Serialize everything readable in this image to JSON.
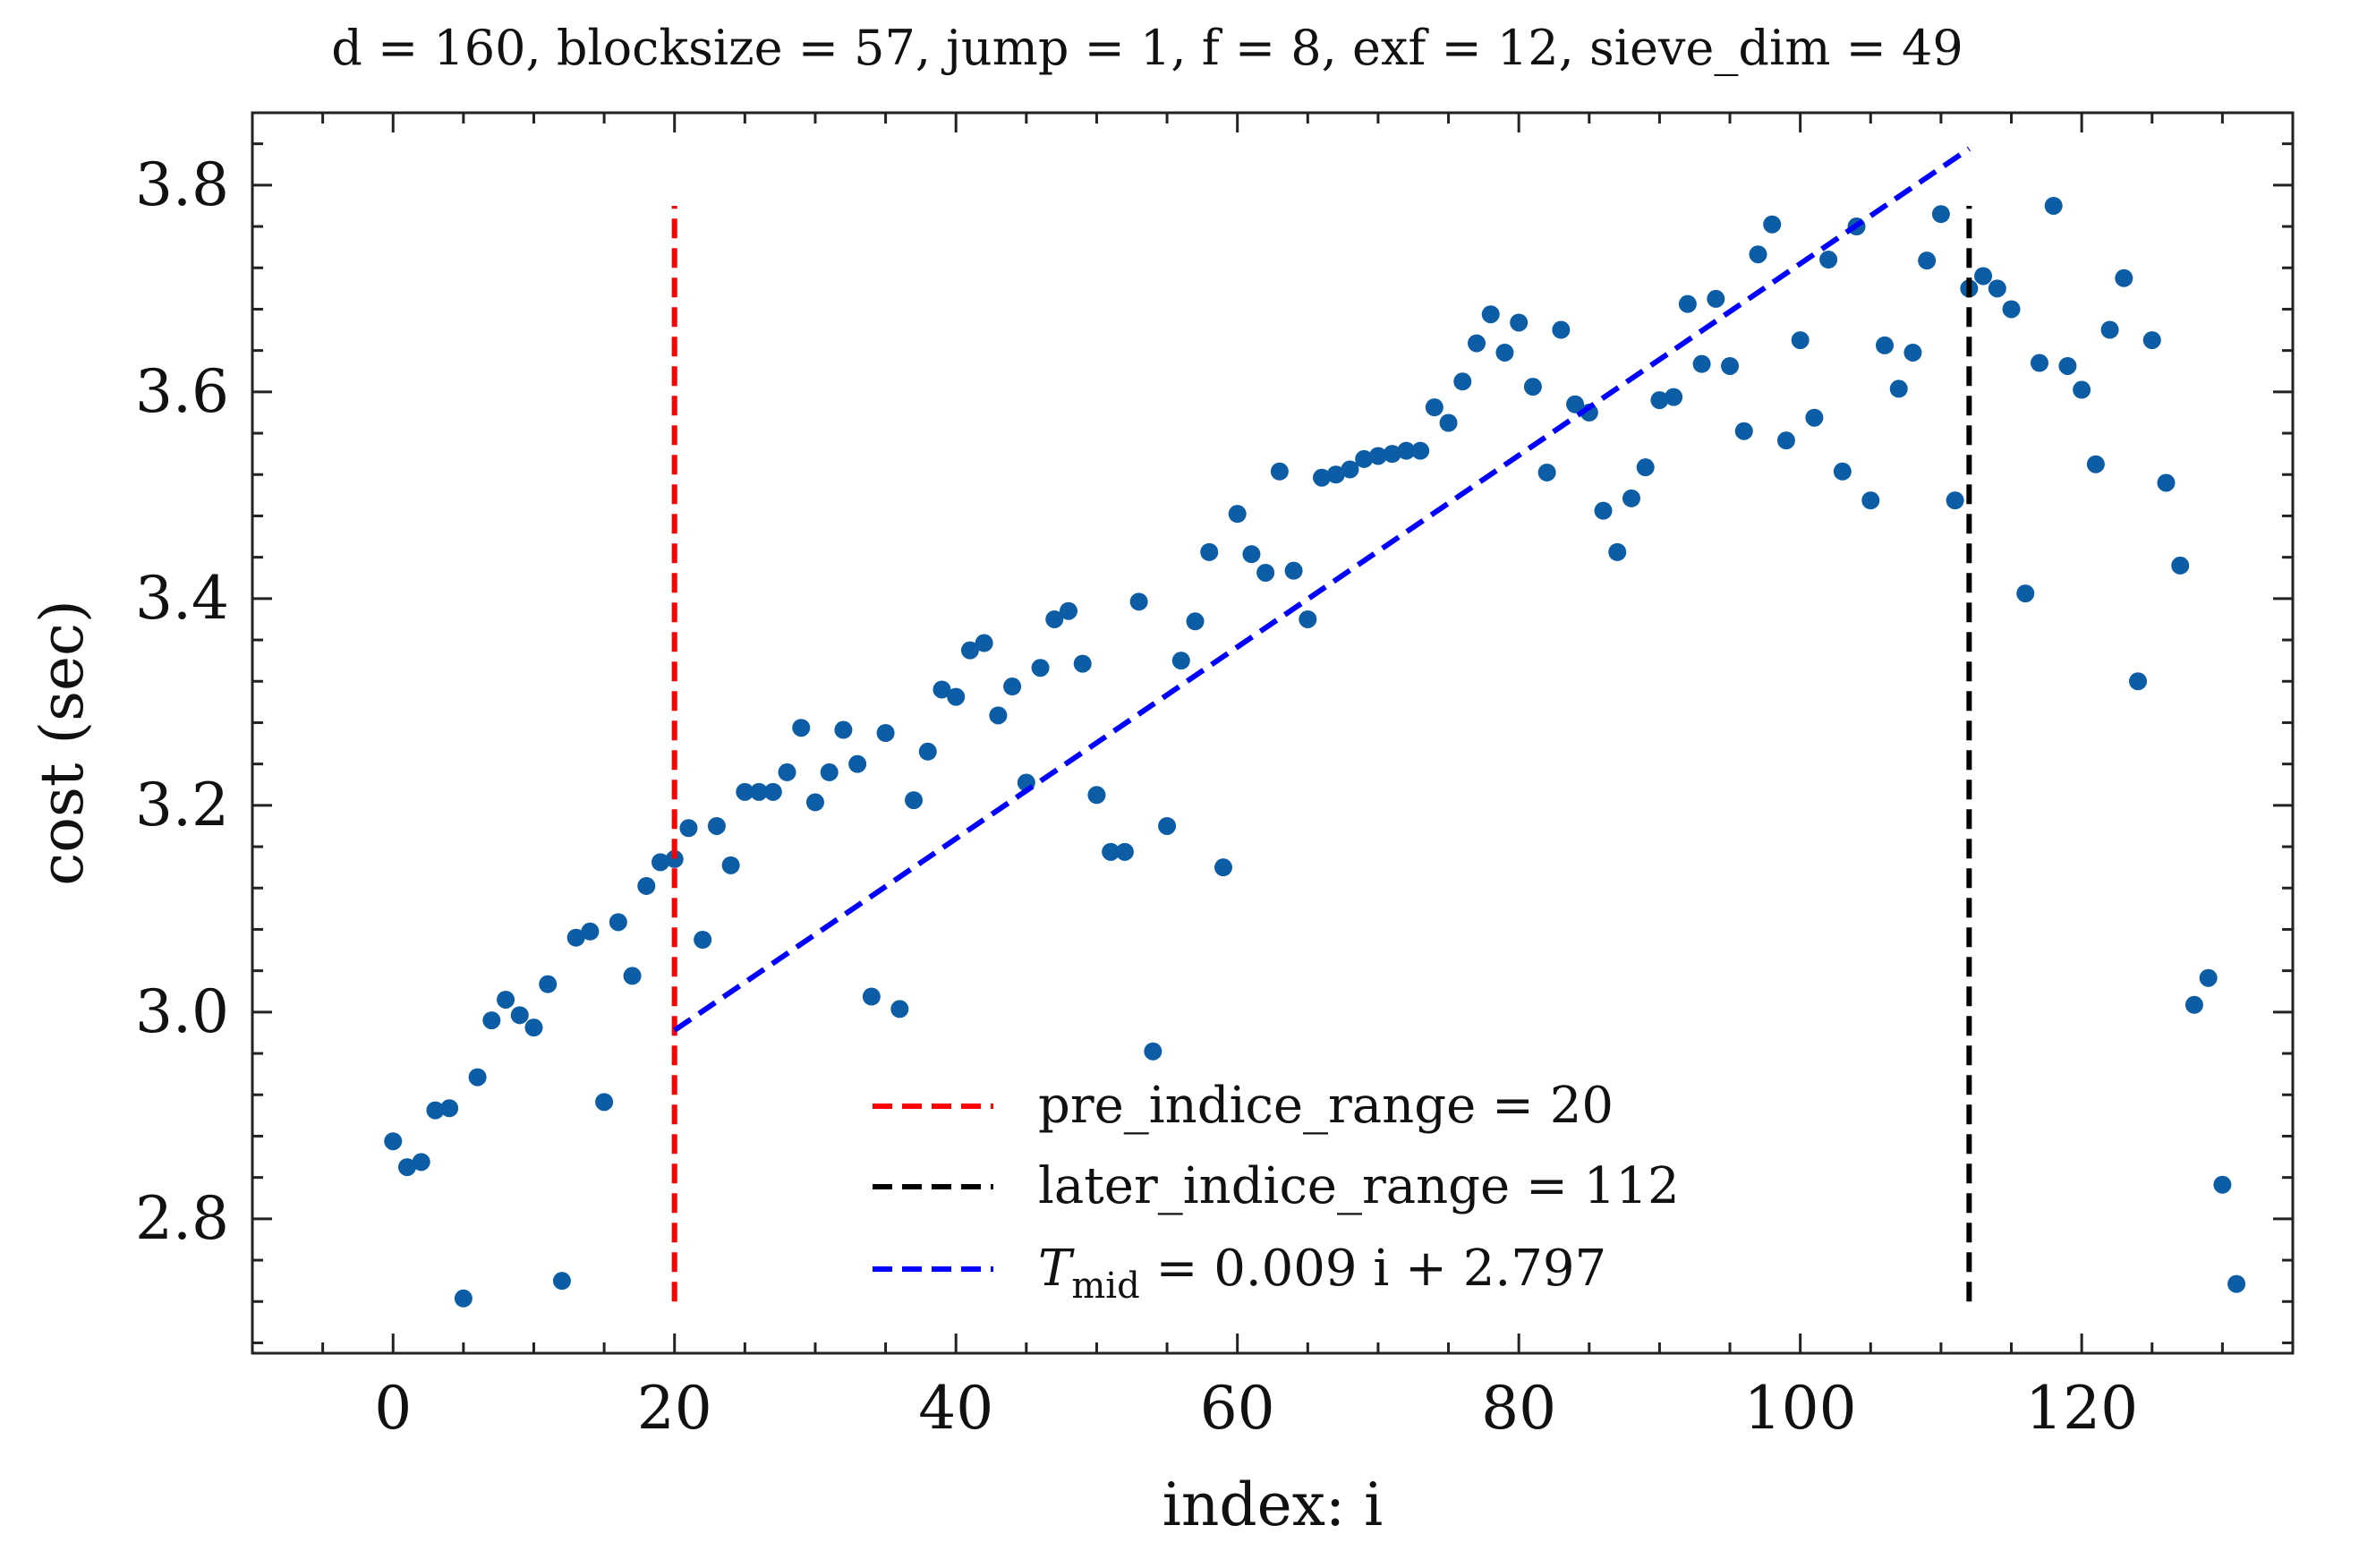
{
  "chart_data": {
    "type": "scatter",
    "title": "d = 160, blocksize = 57, jump = 1, f = 8, exf = 12, sieve_dim = 49",
    "xlabel": "index: i",
    "ylabel": "cost (sec)",
    "xlim": [
      -10,
      135
    ],
    "ylim": [
      2.67,
      3.87
    ],
    "x_ticks": [
      0,
      20,
      40,
      60,
      80,
      100,
      120
    ],
    "x_tick_labels": [
      "0",
      "20",
      "40",
      "60",
      "80",
      "100",
      "120"
    ],
    "y_ticks": [
      2.8,
      3.0,
      3.2,
      3.4,
      3.6,
      3.8
    ],
    "y_tick_labels": [
      "2.8",
      "3.0",
      "3.2",
      "3.4",
      "3.6",
      "3.8"
    ],
    "grid": false,
    "legend_position": "bottom-center",
    "colors": {
      "points": "#0c5da5",
      "pre_line": "#ff0000",
      "later_line": "#000000",
      "fit_line": "#0000ff"
    },
    "points": {
      "x": [
        0,
        1,
        2,
        3,
        4,
        5,
        6,
        7,
        8,
        9,
        10,
        11,
        12,
        13,
        14,
        15,
        16,
        17,
        18,
        19,
        20,
        21,
        22,
        23,
        24,
        25,
        26,
        27,
        28,
        29,
        30,
        31,
        32,
        33,
        34,
        35,
        36,
        37,
        38,
        39,
        40,
        41,
        42,
        43,
        44,
        45,
        46,
        47,
        48,
        49,
        50,
        51,
        52,
        53,
        54,
        55,
        56,
        57,
        58,
        59,
        60,
        61,
        62,
        63,
        64,
        65,
        66,
        67,
        68,
        69,
        70,
        71,
        72,
        73,
        74,
        75,
        76,
        77,
        78,
        79,
        80,
        81,
        82,
        83,
        84,
        85,
        86,
        87,
        88,
        89,
        90,
        91,
        92,
        93,
        94,
        95,
        96,
        97,
        98,
        99,
        100,
        101,
        102,
        103,
        104,
        105,
        106,
        107,
        108,
        109,
        110,
        111,
        112,
        113,
        114,
        115,
        116,
        117,
        118,
        119,
        120,
        121,
        122,
        123,
        124,
        125,
        126,
        127,
        128,
        129,
        130,
        131
      ],
      "y": [
        2.875,
        2.85,
        2.855,
        2.905,
        2.907,
        2.723,
        2.937,
        2.992,
        3.012,
        2.997,
        2.985,
        3.027,
        2.74,
        3.072,
        3.078,
        2.913,
        3.087,
        3.035,
        3.122,
        3.145,
        3.148,
        3.178,
        3.07,
        3.18,
        3.142,
        3.213,
        3.213,
        3.213,
        3.232,
        3.275,
        3.203,
        3.232,
        3.273,
        3.24,
        3.015,
        3.27,
        3.003,
        3.205,
        3.252,
        3.312,
        3.305,
        3.35,
        3.357,
        3.287,
        3.315,
        3.222,
        3.333,
        3.38,
        3.388,
        3.337,
        3.21,
        3.155,
        3.155,
        3.397,
        2.962,
        3.18,
        3.34,
        3.378,
        3.445,
        3.14,
        3.482,
        3.443,
        3.425,
        3.523,
        3.427,
        3.38,
        3.517,
        3.52,
        3.525,
        3.535,
        3.538,
        3.54,
        3.543,
        3.543,
        3.585,
        3.57,
        3.61,
        3.647,
        3.675,
        3.638,
        3.667,
        3.605,
        3.522,
        3.66,
        3.588,
        3.58,
        3.485,
        3.445,
        3.497,
        3.527,
        3.592,
        3.595,
        3.685,
        3.627,
        3.69,
        3.625,
        3.562,
        3.733,
        3.762,
        3.553,
        3.65,
        3.575,
        3.728,
        3.523,
        3.76,
        3.495,
        3.645,
        3.603,
        3.638,
        3.727,
        3.772,
        3.495,
        3.7,
        3.712,
        3.7,
        3.68,
        3.405,
        3.628,
        3.78,
        3.625,
        3.602,
        3.53,
        3.66,
        3.71,
        3.32,
        3.65,
        3.512,
        3.432,
        3.007,
        3.033,
        2.833,
        2.737
      ]
    },
    "lines": [
      {
        "name": "pre_indice_range = 20",
        "kind": "vertical",
        "x": 20,
        "y_range": [
          2.72,
          3.78
        ],
        "style": "dashed"
      },
      {
        "name": "later_indice_range = 112",
        "kind": "vertical",
        "x": 112,
        "y_range": [
          2.72,
          3.78
        ],
        "style": "dashed"
      },
      {
        "name": "T_mid = 0.009 i + 2.797",
        "kind": "fit",
        "x_range": [
          20,
          112
        ],
        "slope": 0.00927,
        "intercept": 2.797,
        "style": "dashed"
      }
    ],
    "legend": [
      {
        "label": "pre_indice_range = 20",
        "line": "pre"
      },
      {
        "label": "later_indice_range = 112",
        "line": "later"
      },
      {
        "label_prefix": "T",
        "label_subscript": "mid",
        "label_suffix": " = 0.009 i + 2.797",
        "line": "fit"
      }
    ]
  }
}
